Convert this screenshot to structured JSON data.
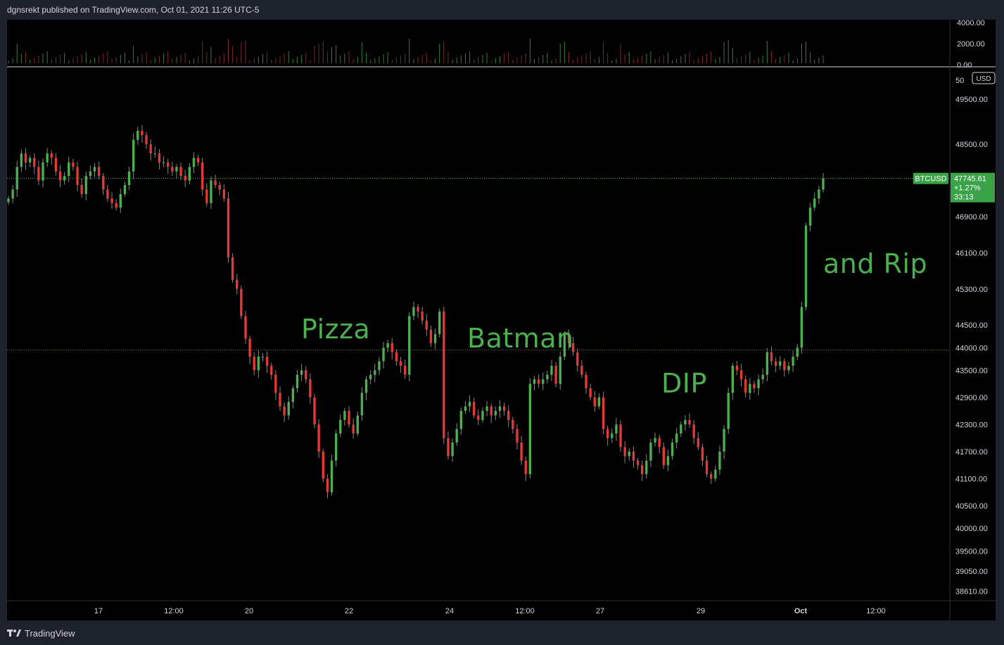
{
  "header": {
    "publisher": "dgnsrekt published on TradingView.com, Oct 01, 2021 11:26 UTC-5"
  },
  "footer": {
    "brand": "TradingView"
  },
  "chart_data": {
    "type": "candlestick",
    "symbol": "BTCUSD",
    "currency_label": "USD",
    "last_price": "47745.61",
    "change_pct": "+1.27%",
    "countdown": "33:13",
    "price_ticks": [
      "49500.00",
      "48500.00",
      "46900.00",
      "46100.00",
      "45300.00",
      "44500.00",
      "44000.00",
      "43500.00",
      "42900.00",
      "42300.00",
      "41700.00",
      "41100.00",
      "40500.00",
      "40000.00",
      "39500.00",
      "39050.00",
      "38610.00"
    ],
    "price_tick_partial": "50",
    "volume_ticks": [
      "4000.00",
      "2000.00",
      "0.00"
    ],
    "time_ticks": [
      "17",
      "12:00",
      "20",
      "22",
      "24",
      "12:00",
      "27",
      "29",
      "Oct",
      "12:00"
    ],
    "bold_time_tick": "Oct",
    "ylim": [
      38400,
      50200
    ],
    "reference_line": 43950,
    "current_line": 47745.61,
    "series_close": [
      47300,
      47500,
      48000,
      48300,
      48100,
      48200,
      48000,
      47700,
      48100,
      48300,
      48200,
      47900,
      47700,
      47800,
      48100,
      48000,
      47600,
      47400,
      47800,
      47900,
      48000,
      47800,
      47500,
      47300,
      47200,
      47100,
      47400,
      47600,
      47900,
      48600,
      48800,
      48700,
      48500,
      48300,
      48300,
      48100,
      48100,
      48000,
      47900,
      48000,
      47800,
      47700,
      48000,
      48200,
      48100,
      47500,
      47200,
      47700,
      47600,
      47500,
      47300,
      46000,
      45500,
      45300,
      44700,
      44200,
      43800,
      43500,
      43800,
      43800,
      43600,
      43400,
      43000,
      42700,
      42500,
      42800,
      43100,
      43400,
      43500,
      43300,
      42900,
      42300,
      41700,
      41100,
      40800,
      41500,
      42100,
      42400,
      42600,
      42300,
      42100,
      42500,
      43000,
      43300,
      43400,
      43500,
      43700,
      44000,
      44100,
      43900,
      43700,
      43600,
      43400,
      44700,
      44900,
      44800,
      44600,
      44400,
      44100,
      44300,
      44800,
      42000,
      41600,
      41900,
      42200,
      42600,
      42700,
      42800,
      42500,
      42400,
      42600,
      42700,
      42500,
      42600,
      42700,
      42600,
      42400,
      42200,
      41900,
      41500,
      41200,
      43200,
      43300,
      43200,
      43300,
      43400,
      43600,
      43200,
      43800,
      44300,
      44100,
      43900,
      43600,
      43400,
      43100,
      42900,
      42700,
      42900,
      42200,
      42000,
      42100,
      42300,
      41800,
      41600,
      41700,
      41500,
      41400,
      41200,
      41500,
      41900,
      42000,
      41800,
      41400,
      41600,
      41900,
      42100,
      42300,
      42400,
      42300,
      42000,
      41800,
      41500,
      41200,
      41100,
      41300,
      41700,
      42200,
      43000,
      43600,
      43500,
      43300,
      43000,
      43200,
      43100,
      43300,
      43400,
      43900,
      43700,
      43600,
      43700,
      43500,
      43600,
      43800,
      44000,
      44900,
      46700,
      47100,
      47300,
      47500,
      47745.61
    ],
    "annotations": [
      {
        "text": "Pizza"
      },
      {
        "text": "Batman"
      },
      {
        "text": "DIP"
      },
      {
        "text": "and Rip"
      }
    ]
  },
  "colors": {
    "up": "#4caf50",
    "down": "#e53935",
    "price_label_bg": "#3aa348",
    "grid_ref": "#7a6b3a"
  }
}
